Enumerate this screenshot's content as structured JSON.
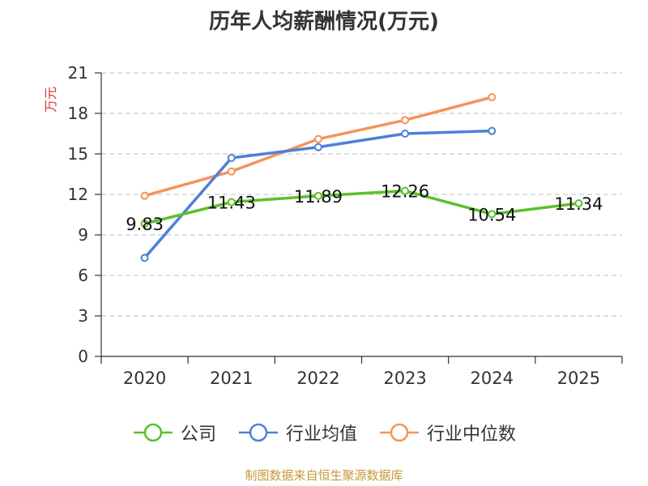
{
  "chart_data": {
    "type": "line",
    "title": "历年人均薪酬情况(万元)",
    "ylabel": "万元",
    "xlabel": "",
    "categories": [
      "2020",
      "2021",
      "2022",
      "2023",
      "2024",
      "2025"
    ],
    "ylim": [
      0,
      21
    ],
    "yticks": [
      0,
      3,
      6,
      9,
      12,
      15,
      18,
      21
    ],
    "grid": true,
    "legend_position": "bottom",
    "series": [
      {
        "name": "公司",
        "color": "#5cc02a",
        "values": [
          9.83,
          11.43,
          11.89,
          12.26,
          10.54,
          11.34
        ],
        "labels": [
          "9.83",
          "11.43",
          "11.89",
          "12.26",
          "10.54",
          "11.34"
        ]
      },
      {
        "name": "行业均值",
        "color": "#4e80d9",
        "values": [
          7.3,
          14.7,
          15.5,
          16.5,
          16.7,
          null
        ]
      },
      {
        "name": "行业中位数",
        "color": "#f5935a",
        "values": [
          11.9,
          13.7,
          16.1,
          17.5,
          19.2,
          null
        ]
      }
    ]
  },
  "source": {
    "text": "制图数据来自恒生聚源数据库",
    "color": "#c39a3a"
  },
  "colors": {
    "axis": "#333333",
    "grid": "#cccccc",
    "ylabel": "#e03030",
    "text": "#333333"
  }
}
